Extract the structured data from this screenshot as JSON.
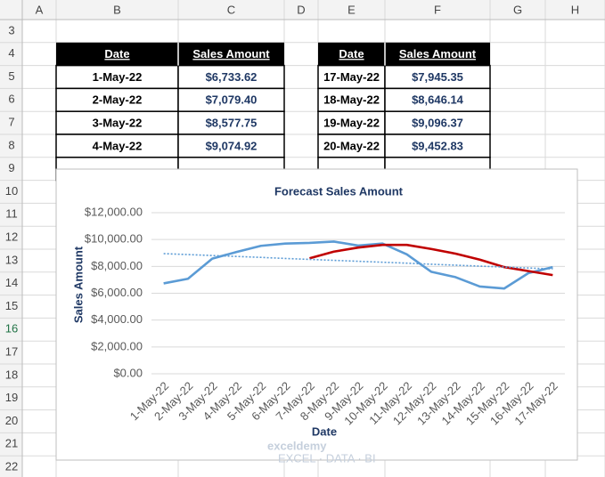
{
  "columns": [
    "A",
    "B",
    "C",
    "D",
    "E",
    "F",
    "G",
    "H"
  ],
  "rows": [
    3,
    4,
    5,
    6,
    7,
    8,
    9,
    10,
    11,
    12,
    13,
    14,
    15,
    16,
    17,
    18,
    19,
    20,
    21,
    22
  ],
  "table_left": {
    "header": [
      "Date",
      "Sales Amount"
    ],
    "rows": [
      [
        "1-May-22",
        "$6,733.62"
      ],
      [
        "2-May-22",
        "$7,079.40"
      ],
      [
        "3-May-22",
        "$8,577.75"
      ],
      [
        "4-May-22",
        "$9,074.92"
      ]
    ]
  },
  "table_right": {
    "header": [
      "Date",
      "Sales Amount"
    ],
    "rows": [
      [
        "17-May-22",
        "$7,945.35"
      ],
      [
        "18-May-22",
        "$8,646.14"
      ],
      [
        "19-May-22",
        "$9,096.37"
      ],
      [
        "20-May-22",
        "$9,452.83"
      ]
    ]
  },
  "chart_data": {
    "type": "line",
    "title": "Forecast Sales Amount",
    "y_label": "Sales Amount",
    "x_label": "Date",
    "categories": [
      "1-May-22",
      "2-May-22",
      "3-May-22",
      "4-May-22",
      "5-May-22",
      "6-May-22",
      "7-May-22",
      "8-May-22",
      "9-May-22",
      "10-May-22",
      "11-May-22",
      "12-May-22",
      "13-May-22",
      "14-May-22",
      "15-May-22",
      "16-May-22",
      "17-May-22"
    ],
    "ylim": [
      0,
      12000
    ],
    "yticks": [
      {
        "value": 0,
        "label": "$0.00"
      },
      {
        "value": 2000,
        "label": "$2,000.00"
      },
      {
        "value": 4000,
        "label": "$4,000.00"
      },
      {
        "value": 6000,
        "label": "$6,000.00"
      },
      {
        "value": 8000,
        "label": "$8,000.00"
      },
      {
        "value": 10000,
        "label": "$10,000.00"
      },
      {
        "value": 12000,
        "label": "$12,000.00"
      }
    ],
    "grid": true,
    "series": [
      {
        "color": "#5b9bd5",
        "style": "solid",
        "values": [
          6733.62,
          7079.4,
          8577.75,
          9074.92,
          9531,
          9700,
          9750,
          9850,
          9550,
          9700,
          8900,
          7600,
          7200,
          6500,
          6350,
          7500,
          7945.35
        ]
      },
      {
        "color": "#c00000",
        "style": "solid",
        "values": [
          null,
          null,
          null,
          null,
          null,
          null,
          8600,
          9100,
          9400,
          9600,
          9600,
          9300,
          8950,
          8500,
          7950,
          7650,
          7350
        ]
      },
      {
        "color": "#5b9bd5",
        "style": "dotted",
        "values": [
          8950,
          8880,
          8810,
          8740,
          8670,
          8590,
          8520,
          8450,
          8380,
          8310,
          8240,
          8160,
          8090,
          8020,
          7950,
          7880,
          7810
        ]
      }
    ]
  },
  "watermark": {
    "name": "exceldemy",
    "tagline": "EXCEL · DATA · BI"
  }
}
